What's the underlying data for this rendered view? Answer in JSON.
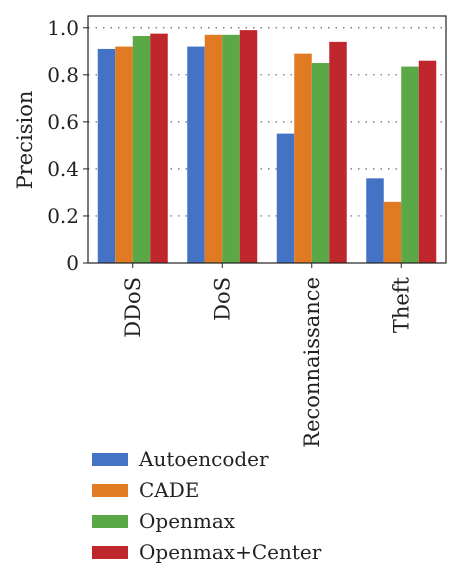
{
  "chart_data": {
    "type": "bar",
    "ylabel": "Precision",
    "ylim": [
      0,
      1.05
    ],
    "yticks": [
      "0",
      "0.2",
      "0.4",
      "0.6",
      "0.8",
      "1.0"
    ],
    "grid": true,
    "legend_position": "bottom",
    "categories": [
      "DDoS",
      "DoS",
      "Reconnaissance",
      "Theft"
    ],
    "series": [
      {
        "name": "Autoencoder",
        "color": "#4472c4",
        "values": [
          0.91,
          0.92,
          0.55,
          0.36
        ]
      },
      {
        "name": "CADE",
        "color": "#e07b24",
        "values": [
          0.92,
          0.97,
          0.89,
          0.26
        ]
      },
      {
        "name": "Openmax",
        "color": "#5aa846",
        "values": [
          0.965,
          0.97,
          0.85,
          0.835
        ]
      },
      {
        "name": "Openmax+Center",
        "color": "#c0272d",
        "values": [
          0.975,
          0.99,
          0.94,
          0.86
        ]
      }
    ]
  }
}
